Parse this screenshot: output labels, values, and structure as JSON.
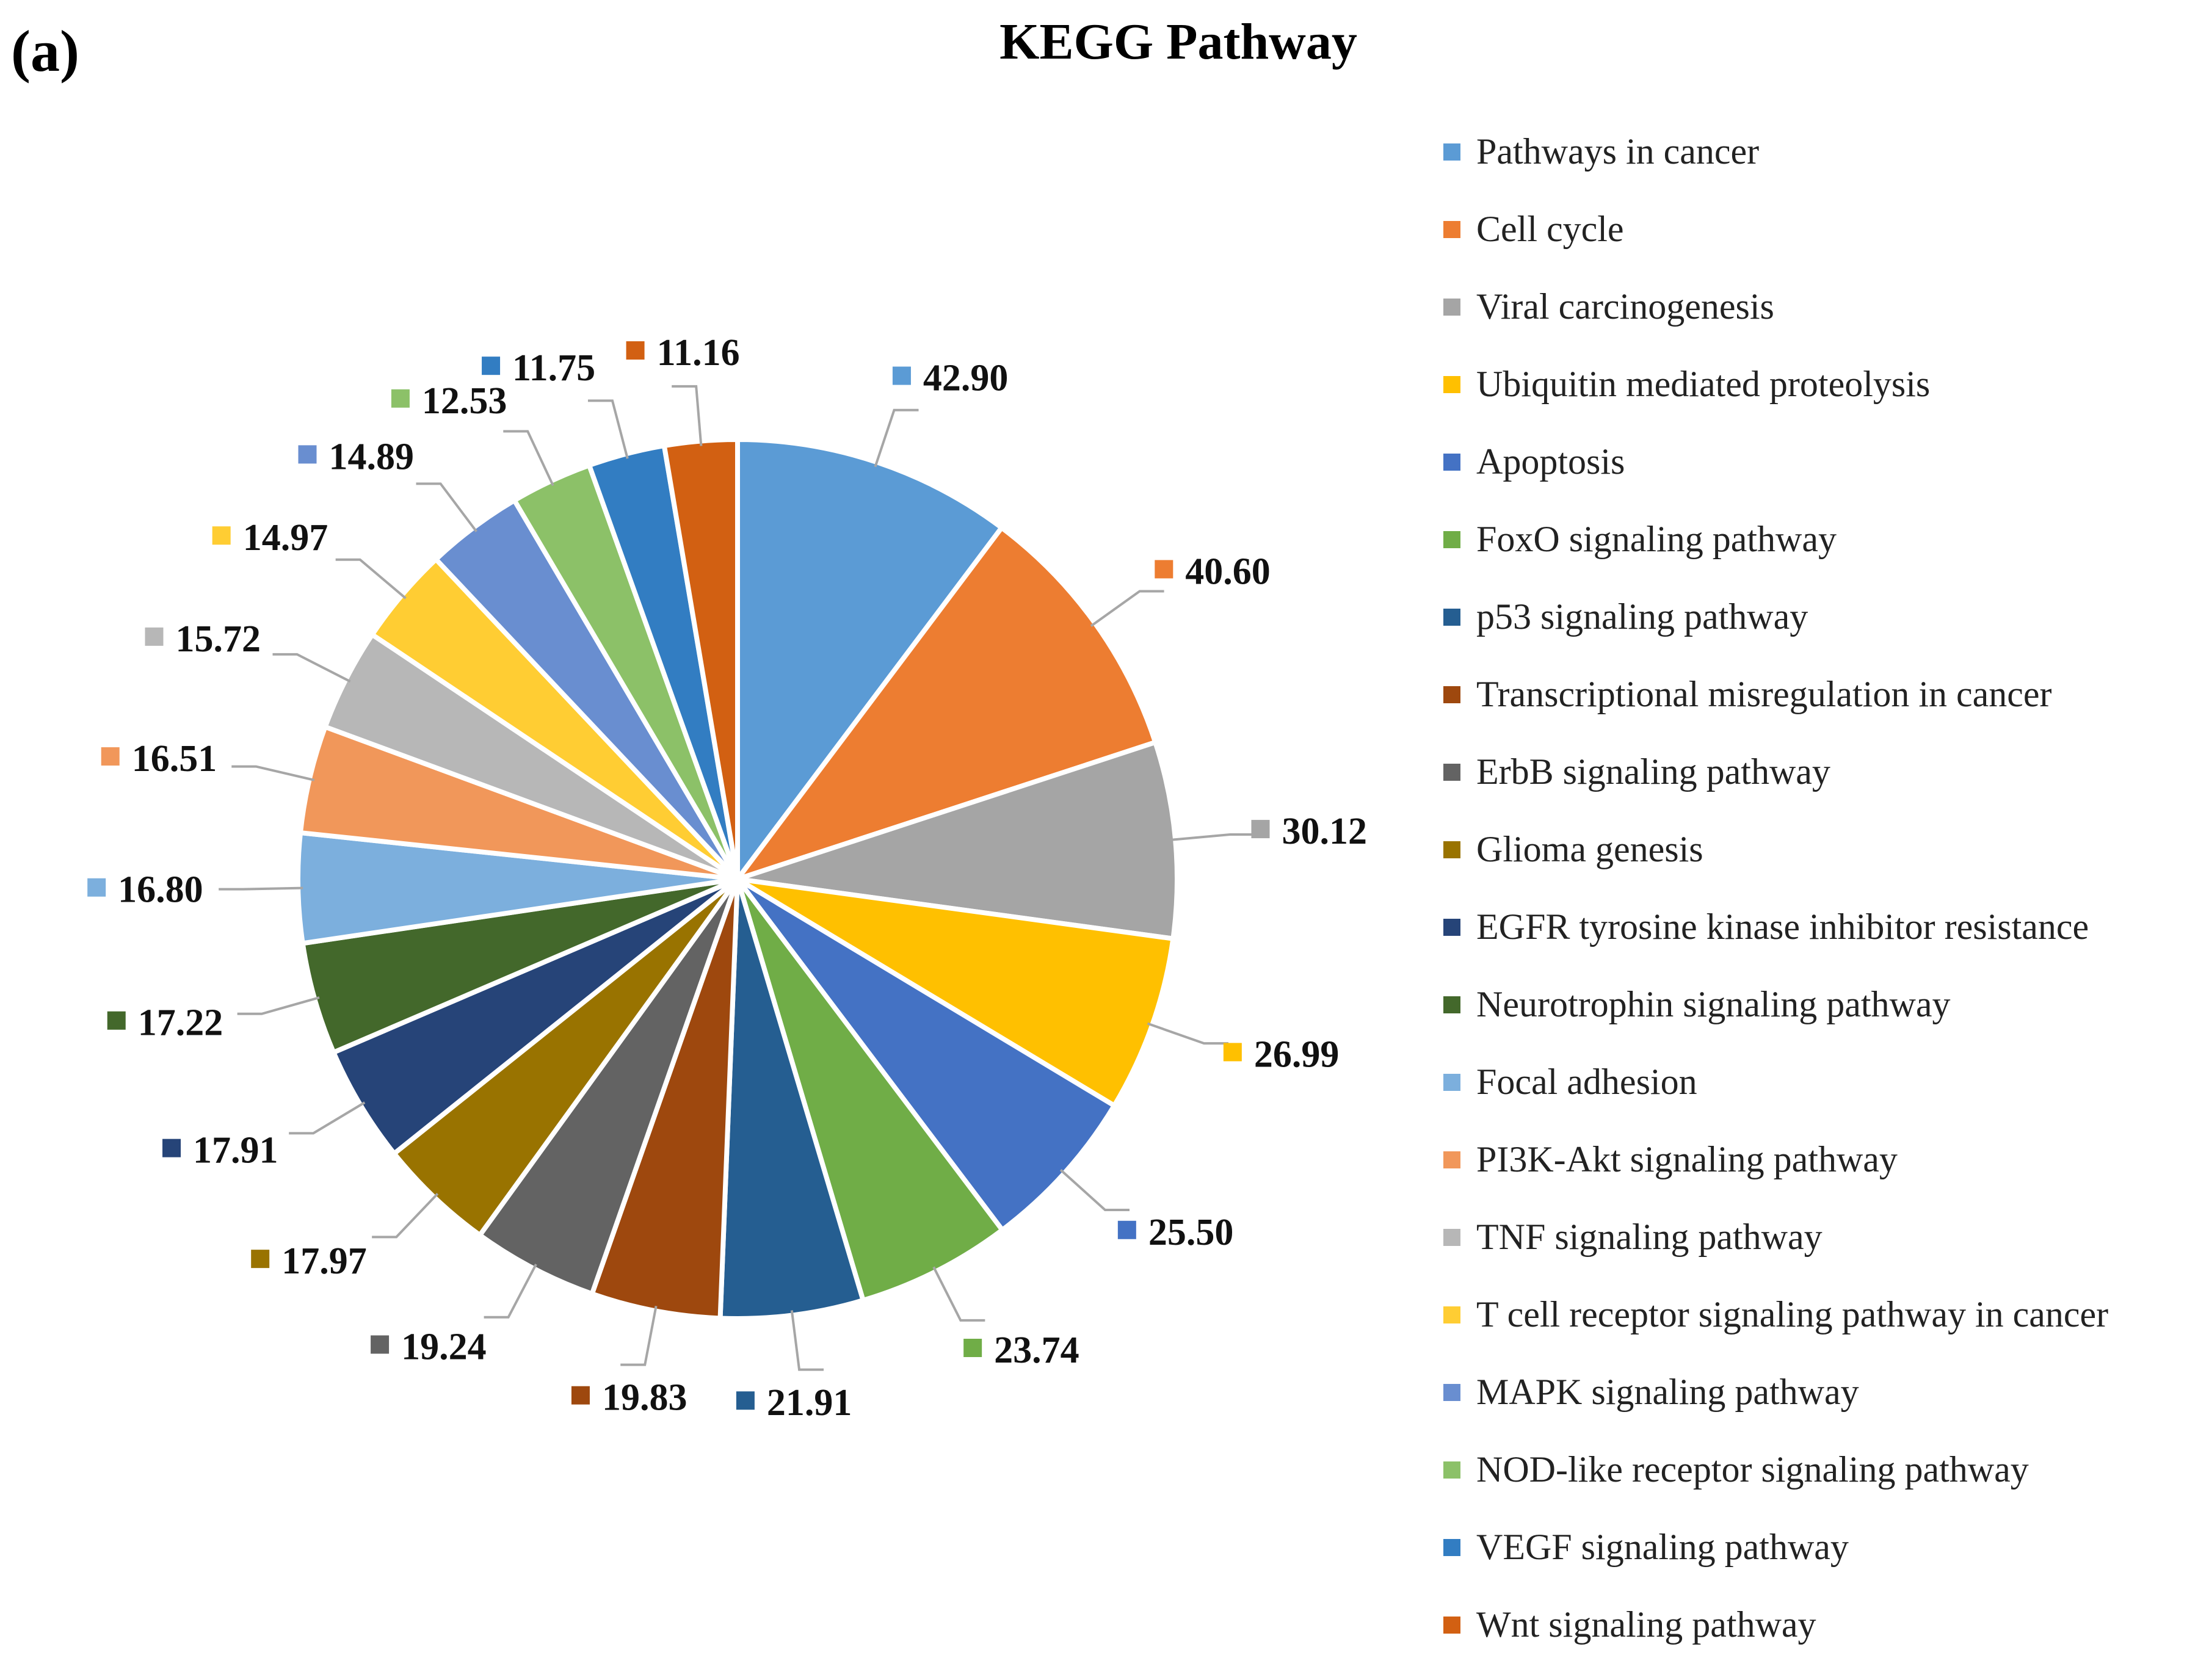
{
  "panel_label": "(a)",
  "chart_data": {
    "type": "pie",
    "title": "KEGG Pathway",
    "legend_position": "right",
    "categories": [
      "Pathways in cancer",
      "Cell cycle",
      "Viral carcinogenesis",
      "Ubiquitin mediated proteolysis",
      "Apoptosis",
      "FoxO signaling pathway",
      "p53 signaling pathway",
      "Transcriptional misregulation in cancer",
      "ErbB signaling pathway",
      "Glioma genesis",
      "EGFR tyrosine kinase inhibitor  resistance",
      "Neurotrophin signaling pathway",
      "Focal adhesion",
      "PI3K-Akt signaling pathway",
      "TNF signaling pathway",
      "T cell receptor signaling pathway in cancer",
      "MAPK signaling pathway",
      "NOD-like receptor signaling pathway",
      "VEGF signaling pathway",
      "Wnt signaling pathway"
    ],
    "values": [
      42.9,
      40.6,
      30.12,
      26.99,
      25.5,
      23.74,
      21.91,
      19.83,
      19.24,
      17.97,
      17.91,
      17.22,
      16.8,
      16.51,
      15.72,
      14.97,
      14.89,
      12.53,
      11.75,
      11.16
    ],
    "value_labels": [
      "42.90",
      "40.60",
      "30.12",
      "26.99",
      "25.50",
      "23.74",
      "21.91",
      "19.83",
      "19.24",
      "17.97",
      "17.91",
      "17.22",
      "16.80",
      "16.51",
      "15.72",
      "14.97",
      "14.89",
      "12.53",
      "11.75",
      "11.16"
    ],
    "colors": [
      "#5B9BD5",
      "#ED7D31",
      "#A5A5A5",
      "#FFC000",
      "#4472C4",
      "#70AD47",
      "#255E91",
      "#9E480E",
      "#636363",
      "#997300",
      "#264478",
      "#43682B",
      "#7CAFDD",
      "#F1975A",
      "#B7B7B7",
      "#FFCD33",
      "#698ED0",
      "#8CC168",
      "#327DC2",
      "#D26012"
    ]
  }
}
